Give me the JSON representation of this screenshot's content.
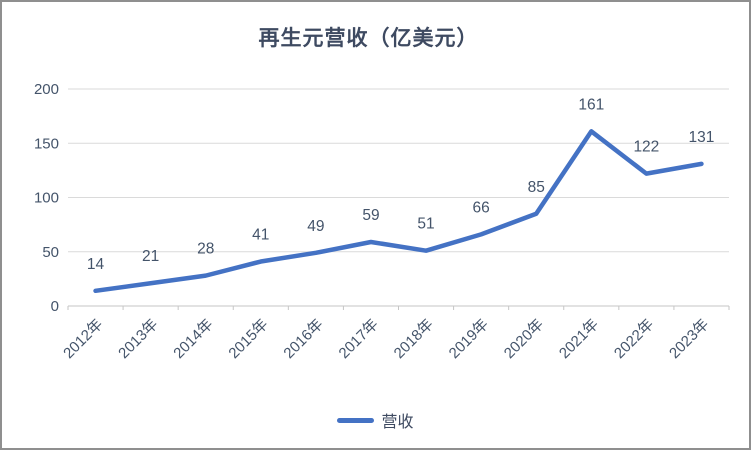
{
  "chart_data": {
    "type": "line",
    "title": "再生元营收（亿美元）",
    "categories": [
      "2012年",
      "2013年",
      "2014年",
      "2015年",
      "2016年",
      "2017年",
      "2018年",
      "2019年",
      "2020年",
      "2021年",
      "2022年",
      "2023年"
    ],
    "series": [
      {
        "name": "营收",
        "values": [
          14,
          21,
          28,
          41,
          49,
          59,
          51,
          66,
          85,
          161,
          122,
          131
        ]
      }
    ],
    "ylim": [
      0,
      200
    ],
    "yticks": [
      0,
      50,
      100,
      150,
      200
    ],
    "grid": true,
    "legend_position": "bottom",
    "data_labels": true,
    "x_label_rotation": -45,
    "colors": {
      "line": "#4472c4",
      "title_text": "#3e4a61",
      "axis_text": "#44546a",
      "data_label_text": "#44546a",
      "gridline": "#dadada",
      "axis_line": "#c6c6c6",
      "background": "#ffffff",
      "frame_border": "#8f8f8f"
    }
  }
}
